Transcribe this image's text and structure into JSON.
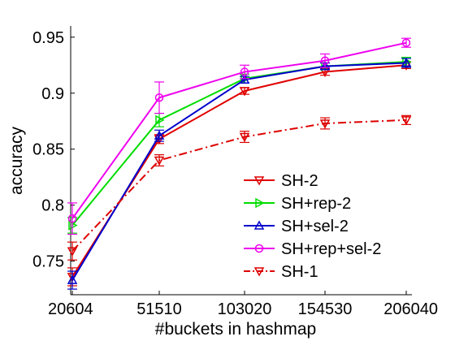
{
  "chart_data": {
    "type": "line",
    "title": "",
    "xlabel": "#buckets in hashmap",
    "ylabel": "accuracy",
    "categories": [
      "20604",
      "51510",
      "103020",
      "154530",
      "206040"
    ],
    "x": [
      20604,
      51510,
      103020,
      154530,
      206040
    ],
    "ylim": [
      0.72,
      0.96
    ],
    "yticks": [
      0.75,
      0.8,
      0.85,
      0.9,
      0.95
    ],
    "ytick_labels": [
      "0.75",
      "0.8",
      "0.85",
      "0.9",
      "0.95"
    ],
    "grid": false,
    "legend_position": "bottom-right",
    "series": [
      {
        "name": "SH-2",
        "color": "#e00000",
        "marker": "triangle-down",
        "dash": "solid",
        "values": [
          0.736,
          0.859,
          0.902,
          0.919,
          0.925
        ],
        "errors": [
          0.008,
          0.004,
          0.003,
          0.003,
          0.003
        ]
      },
      {
        "name": "SH+rep-2",
        "color": "#00dd00",
        "marker": "triangle-right",
        "dash": "solid",
        "values": [
          0.782,
          0.876,
          0.913,
          0.924,
          0.928
        ],
        "errors": [
          0.007,
          0.006,
          0.004,
          0.003,
          0.004
        ]
      },
      {
        "name": "SH+sel-2",
        "color": "#0000cc",
        "marker": "triangle-up",
        "dash": "solid",
        "values": [
          0.733,
          0.862,
          0.912,
          0.924,
          0.927
        ],
        "errors": [
          0.008,
          0.005,
          0.003,
          0.003,
          0.004
        ]
      },
      {
        "name": "SH+rep+sel-2",
        "color": "#ee00ee",
        "marker": "circle",
        "dash": "solid",
        "values": [
          0.788,
          0.896,
          0.919,
          0.929,
          0.945
        ],
        "errors": [
          0.014,
          0.014,
          0.006,
          0.006,
          0.004
        ]
      },
      {
        "name": "SH-1",
        "color": "#dd0000",
        "marker": "triangle-down",
        "dash": "dashdot",
        "values": [
          0.759,
          0.84,
          0.861,
          0.873,
          0.876
        ],
        "errors": [
          0.008,
          0.005,
          0.005,
          0.005,
          0.004
        ]
      }
    ]
  }
}
